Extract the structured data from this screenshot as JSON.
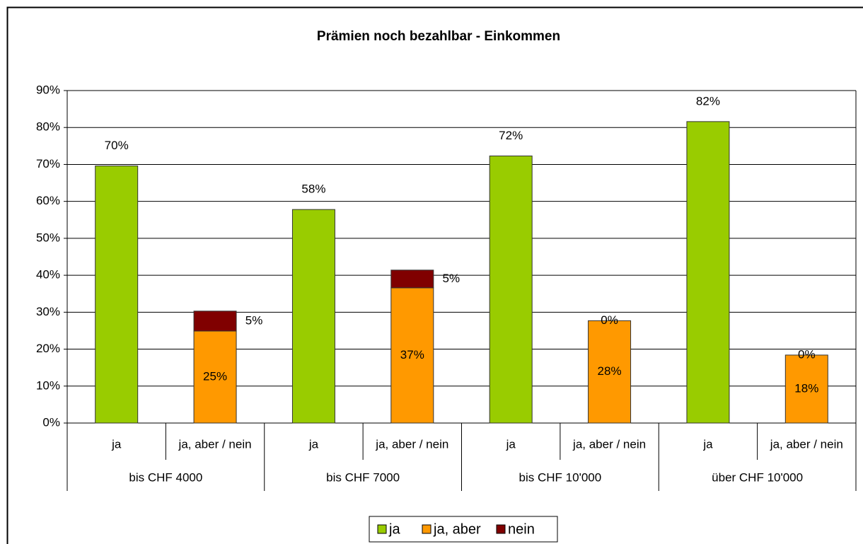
{
  "chart_data": {
    "type": "bar",
    "stacked": true,
    "title": "Prämien noch bezahlbar - Einkommen",
    "categories": [
      "ja",
      "ja, aber / nein",
      "ja",
      "ja, aber / nein",
      "ja",
      "ja, aber / nein",
      "ja",
      "ja, aber / nein"
    ],
    "groups": [
      "bis CHF 4000",
      "bis CHF 7000",
      "bis CHF 10'000",
      "über CHF 10'000"
    ],
    "series": [
      {
        "name": "ja",
        "color": "#99cc00",
        "values": [
          69.6,
          null,
          57.8,
          null,
          72.3,
          null,
          81.6,
          null
        ],
        "value_labels": [
          "70%",
          null,
          "58%",
          null,
          "72%",
          null,
          "82%",
          null
        ]
      },
      {
        "name": "ja, aber",
        "color": "#ff9900",
        "values": [
          null,
          24.9,
          null,
          36.6,
          null,
          27.7,
          null,
          18.4
        ],
        "value_labels": [
          null,
          "25%",
          null,
          "37%",
          null,
          "28%",
          null,
          "18%"
        ]
      },
      {
        "name": "nein",
        "color": "#800000",
        "values": [
          null,
          5.4,
          null,
          4.8,
          null,
          0,
          null,
          0
        ],
        "value_labels": [
          null,
          "5%",
          null,
          "5%",
          null,
          "0%",
          null,
          "0%"
        ]
      }
    ],
    "ylim": [
      0,
      90
    ],
    "yticks": [
      {
        "value": 0,
        "label": "0%"
      },
      {
        "value": 10,
        "label": "10%"
      },
      {
        "value": 20,
        "label": "20%"
      },
      {
        "value": 30,
        "label": "30%"
      },
      {
        "value": 40,
        "label": "40%"
      },
      {
        "value": 50,
        "label": "50%"
      },
      {
        "value": 60,
        "label": "60%"
      },
      {
        "value": 70,
        "label": "70%"
      },
      {
        "value": 80,
        "label": "80%"
      },
      {
        "value": 90,
        "label": "90%"
      }
    ],
    "grid": true,
    "legend": "bottom"
  }
}
